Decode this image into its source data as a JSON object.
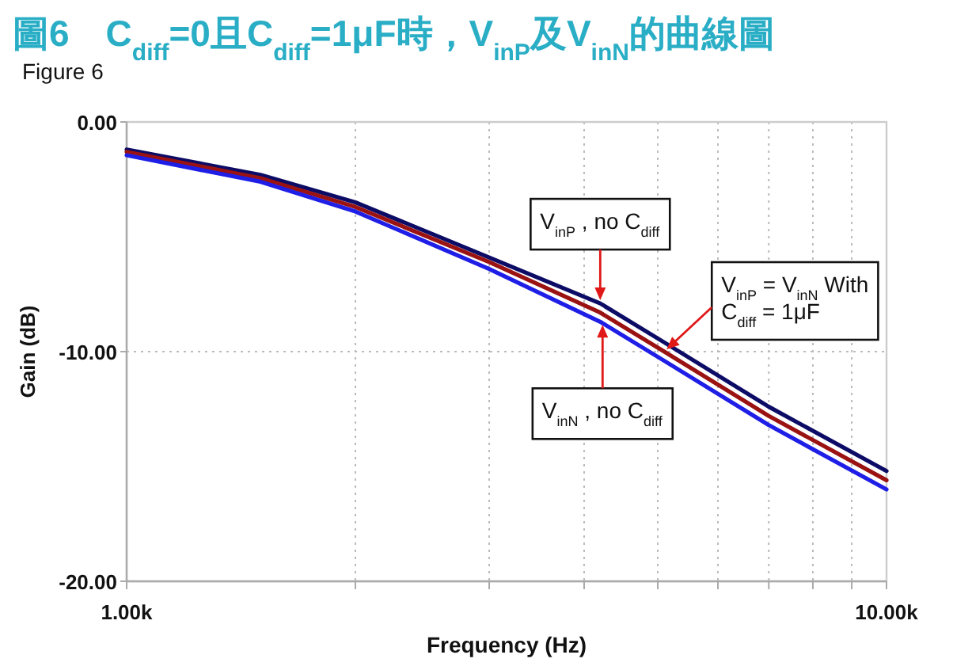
{
  "chart_data": {
    "type": "line",
    "title": "圖6　C$_{diff}$=0且C$_{diff}$=1μF時，V$_{inP}$及V$_{inN}$的曲線圖",
    "subtitle": "Figure 6",
    "xlabel": "Frequency (Hz)",
    "ylabel": "Gain (dB)",
    "x": [
      1000,
      1500,
      2000,
      3000,
      4200,
      5100,
      7000,
      10000
    ],
    "series": [
      {
        "color": "#0c0c66",
        "values": [
          -1.2,
          -2.3,
          -3.5,
          -5.9,
          -7.9,
          -9.6,
          -12.4,
          -15.2
        ]
      },
      {
        "color": "#9a1212",
        "values": [
          -1.3,
          -2.45,
          -3.7,
          -6.1,
          -8.3,
          -10.0,
          -12.8,
          -15.6
        ]
      },
      {
        "color": "#1e1ee6",
        "values": [
          -1.45,
          -2.6,
          -3.9,
          -6.4,
          -8.7,
          -10.4,
          -13.2,
          -16.0
        ]
      }
    ],
    "log": "x",
    "xlim": [
      1000,
      10000
    ],
    "ylim": [
      -20,
      0
    ],
    "xticks": [
      {
        "value": 1000,
        "label": "1.00k"
      },
      {
        "value": 2000,
        "label": null
      },
      {
        "value": 3000,
        "label": null
      },
      {
        "value": 4000,
        "label": null
      },
      {
        "value": 5000,
        "label": null
      },
      {
        "value": 6000,
        "label": null
      },
      {
        "value": 7000,
        "label": null
      },
      {
        "value": 8000,
        "label": null
      },
      {
        "value": 9000,
        "label": null
      },
      {
        "value": 10000,
        "label": "10.00k"
      }
    ],
    "yticks": [
      {
        "value": 0,
        "label": "0.00"
      },
      {
        "value": -10,
        "label": "-10.00"
      },
      {
        "value": -20,
        "label": "-20.00"
      }
    ],
    "grid": true,
    "legend": false,
    "marker": "none",
    "line_style": "solid",
    "annotations": [
      {
        "text": "V$_{inP}$ , no C$_{diff}$",
        "x": 4200,
        "y": -7.9
      },
      {
        "text": "V$_{inN}$ , no C$_{diff}$",
        "x": 4230,
        "y": -8.7
      },
      {
        "text": "V$_{inP}$ = V$_{inN}$ With",
        "x": 5100,
        "y": -10.0
      },
      "C$_{diff}$ = 1μF"
    ]
  }
}
